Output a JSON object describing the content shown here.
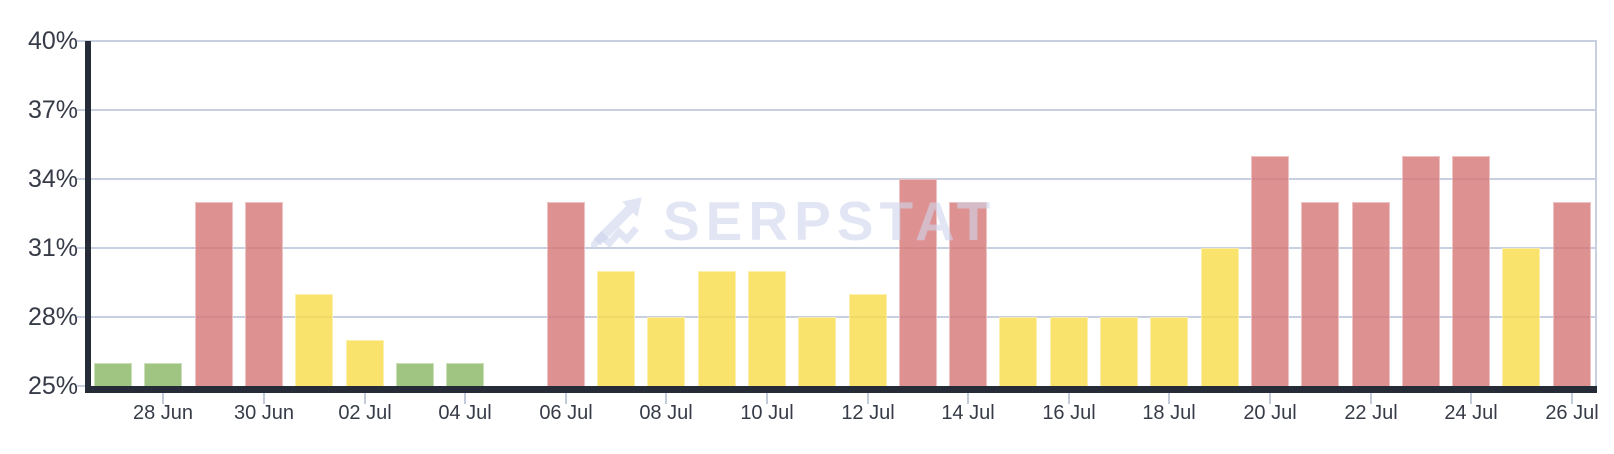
{
  "watermark": {
    "text": "SERPSTAT",
    "icon": "serpstat-trend-arrow-icon"
  },
  "colors": {
    "green": "rgba(136,183,100,0.8)",
    "yellow": "rgba(249,220,73,0.8)",
    "red": "rgba(214,117,117,0.8)",
    "axis": "#262b38",
    "grid": "#c8cfe0",
    "tick_mark": "#c3cada",
    "label": "#363b47",
    "watermark": "rgba(206,214,236,0.6)"
  },
  "chart_data": {
    "type": "bar",
    "title": "",
    "xlabel": "",
    "ylabel": "",
    "ylim": [
      25,
      40
    ],
    "grid": true,
    "legend": false,
    "y_axis": {
      "unit": "%",
      "tick_values": [
        40,
        37,
        34,
        31,
        28,
        25
      ],
      "tick_labels": [
        "40%",
        "37%",
        "34%",
        "31%",
        "28%",
        "25%"
      ]
    },
    "x_axis": {
      "tick_labels": [
        "28 Jun",
        "30 Jun",
        "02 Jul",
        "04 Jul",
        "06 Jul",
        "08 Jul",
        "10 Jul",
        "12 Jul",
        "14 Jul",
        "16 Jul",
        "18 Jul",
        "20 Jul",
        "22 Jul",
        "24 Jul",
        "26 Jul"
      ]
    },
    "categories": [
      "27 Jun",
      "28 Jun",
      "29 Jun",
      "30 Jun",
      "01 Jul",
      "02 Jul",
      "03 Jul",
      "04 Jul",
      "05 Jul",
      "06 Jul",
      "07 Jul",
      "08 Jul",
      "09 Jul",
      "10 Jul",
      "11 Jul",
      "12 Jul",
      "13 Jul",
      "14 Jul",
      "15 Jul",
      "16 Jul",
      "17 Jul",
      "18 Jul",
      "19 Jul",
      "20 Jul",
      "21 Jul",
      "22 Jul",
      "23 Jul",
      "24 Jul",
      "25 Jul",
      "26 Jul"
    ],
    "values": [
      26,
      26,
      33,
      33,
      29,
      27,
      26,
      26,
      null,
      33,
      30,
      28,
      30,
      30,
      28,
      29,
      34,
      33,
      28,
      28,
      28,
      28,
      31,
      35,
      33,
      33,
      35,
      35,
      31,
      33
    ],
    "bar_colors": [
      "green",
      "green",
      "red",
      "red",
      "yellow",
      "yellow",
      "green",
      "green",
      null,
      "red",
      "yellow",
      "yellow",
      "yellow",
      "yellow",
      "yellow",
      "yellow",
      "red",
      "red",
      "yellow",
      "yellow",
      "yellow",
      "yellow",
      "yellow",
      "red",
      "red",
      "red",
      "red",
      "red",
      "yellow",
      "red"
    ]
  }
}
